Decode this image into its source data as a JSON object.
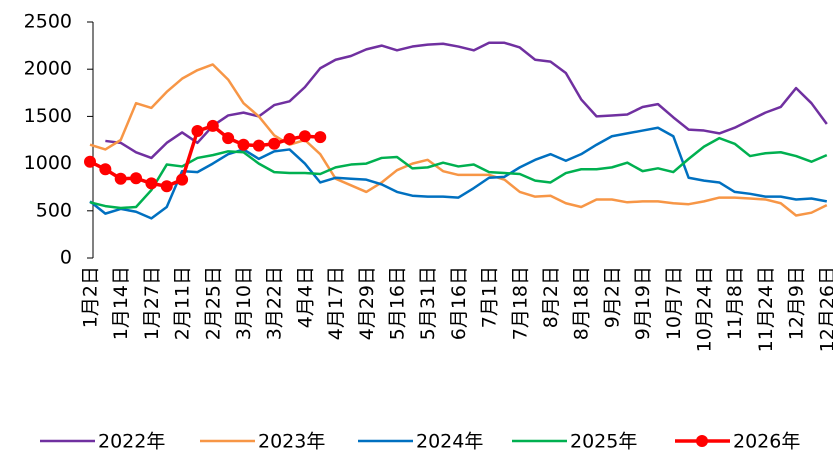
{
  "chart_data": {
    "type": "line",
    "categories": [
      "1月2日",
      null,
      "1月14日",
      null,
      "1月27日",
      null,
      "2月11日",
      null,
      "2月25日",
      null,
      "3月10日",
      null,
      "3月22日",
      null,
      "4月4日",
      null,
      "4月17日",
      null,
      "4月29日",
      null,
      "5月16日",
      null,
      "5月31日",
      null,
      "6月16日",
      null,
      "7月1日",
      null,
      "7月18日",
      null,
      "8月2日",
      null,
      "8月18日",
      null,
      "9月2日",
      null,
      "9月19日",
      null,
      "10月7日",
      null,
      "10月24日",
      null,
      "11月8日",
      null,
      "11月24日",
      null,
      "12月9日",
      null,
      "12月26日"
    ],
    "ylim": [
      0,
      2500
    ],
    "yticks": [
      0,
      500,
      1000,
      1500,
      2000,
      2500
    ],
    "series": [
      {
        "name": "2022年",
        "color": "#7030a0",
        "values": [
          null,
          1240,
          1220,
          1120,
          1060,
          1220,
          1330,
          1220,
          1400,
          1510,
          1540,
          1500,
          1620,
          1660,
          1810,
          2010,
          2100,
          2140,
          2210,
          2250,
          2200,
          2240,
          2260,
          2270,
          2240,
          2200,
          2280,
          2280,
          2230,
          2100,
          2080,
          1960,
          1680,
          1500,
          1510,
          1520,
          1600,
          1630,
          1490,
          1360,
          1350,
          1320,
          1380,
          1460,
          1540,
          1600,
          1800,
          1640,
          1420
        ]
      },
      {
        "name": "2023年",
        "color": "#f79646",
        "values": [
          1200,
          1150,
          1250,
          1640,
          1590,
          1760,
          1900,
          1990,
          2050,
          1890,
          1640,
          1500,
          1300,
          1200,
          1250,
          1100,
          840,
          770,
          700,
          800,
          930,
          1000,
          1040,
          920,
          880,
          880,
          880,
          830,
          700,
          650,
          660,
          580,
          540,
          620,
          620,
          590,
          600,
          600,
          580,
          570,
          600,
          640,
          640,
          630,
          620,
          580,
          450,
          480,
          560
        ]
      },
      {
        "name": "2024年",
        "color": "#0070c0",
        "values": [
          600,
          470,
          520,
          490,
          420,
          540,
          920,
          910,
          1000,
          1100,
          1150,
          1050,
          1130,
          1150,
          1000,
          800,
          850,
          840,
          830,
          780,
          700,
          660,
          650,
          650,
          640,
          740,
          850,
          860,
          960,
          1040,
          1100,
          1030,
          1100,
          1200,
          1290,
          1320,
          1350,
          1380,
          1290,
          850,
          820,
          800,
          700,
          680,
          650,
          650,
          620,
          630,
          600
        ]
      },
      {
        "name": "2025年",
        "color": "#00b050",
        "values": [
          590,
          550,
          530,
          540,
          720,
          990,
          970,
          1060,
          1090,
          1130,
          1120,
          1000,
          910,
          900,
          900,
          890,
          960,
          990,
          1000,
          1060,
          1070,
          950,
          960,
          1010,
          970,
          990,
          910,
          900,
          890,
          820,
          800,
          900,
          940,
          940,
          960,
          1010,
          920,
          950,
          910,
          1050,
          1180,
          1270,
          1210,
          1080,
          1110,
          1120,
          1080,
          1020,
          1090
        ]
      },
      {
        "name": "2026年",
        "color": "#ff0000",
        "markers": true,
        "values": [
          1020,
          940,
          840,
          845,
          790,
          760,
          830,
          1345,
          1400,
          1270,
          1200,
          1190,
          1210,
          1260,
          1290,
          1280,
          null,
          null,
          null,
          null,
          null,
          null,
          null,
          null,
          null,
          null,
          null,
          null,
          null,
          null,
          null,
          null,
          null,
          null,
          null,
          null,
          null,
          null,
          null,
          null,
          null,
          null,
          null,
          null,
          null,
          null,
          null,
          null,
          null
        ]
      }
    ]
  }
}
